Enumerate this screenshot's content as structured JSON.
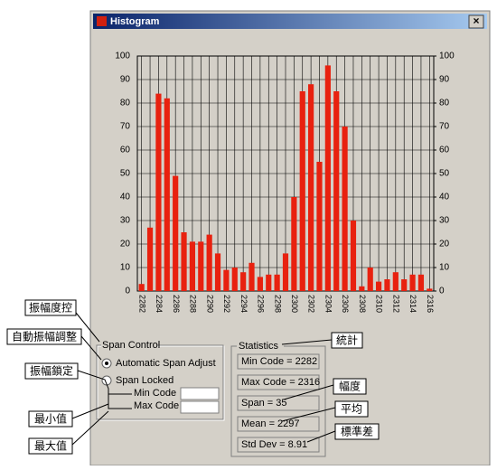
{
  "window": {
    "title": "Histogram",
    "close": "×"
  },
  "chart_data": {
    "type": "bar",
    "categories": [
      "2282",
      null,
      "2284",
      null,
      "2286",
      null,
      "2288",
      null,
      "2290",
      null,
      "2292",
      null,
      "2294",
      null,
      "2296",
      null,
      "2298",
      null,
      "2300",
      null,
      "2302",
      null,
      "2304",
      null,
      "2306",
      null,
      "2308",
      null,
      "2310",
      null,
      "2312",
      null,
      "2314",
      null,
      "2316"
    ],
    "values": [
      3,
      27,
      84,
      82,
      49,
      25,
      21,
      21,
      24,
      16,
      9,
      10,
      8,
      12,
      6,
      7,
      7,
      16,
      40,
      85,
      88,
      55,
      96,
      85,
      70,
      30,
      2,
      10,
      4,
      5,
      8,
      5,
      7,
      7,
      1
    ],
    "color": "#e8210f",
    "ylim": [
      0,
      100
    ],
    "yticks": [
      0,
      10,
      20,
      30,
      40,
      50,
      60,
      70,
      80,
      90,
      100
    ],
    "y2lim": [
      0,
      100
    ],
    "y2ticks": [
      0,
      10,
      20,
      30,
      40,
      50,
      60,
      70,
      80,
      90,
      100
    ],
    "grid": true
  },
  "span_control": {
    "title": "Span Control",
    "auto": "Automatic Span Adjust",
    "locked": "Span Locked",
    "min_code": "Min Code",
    "max_code": "Max Code",
    "selected": "auto"
  },
  "statistics": {
    "title": "Statistics",
    "items": [
      "Min Code = 2282",
      "Max Code = 2316",
      "Span = 35",
      "Mean = 2297",
      "Std Dev = 8.91"
    ]
  },
  "annotations": {
    "span_control": "振幅度控",
    "auto": "自動振幅調整",
    "locked": "振幅鎖定",
    "min": "最小值",
    "max": "最大值",
    "statistics": "統計",
    "span": "幅度",
    "mean": "平均",
    "std_dev": "標準差"
  }
}
